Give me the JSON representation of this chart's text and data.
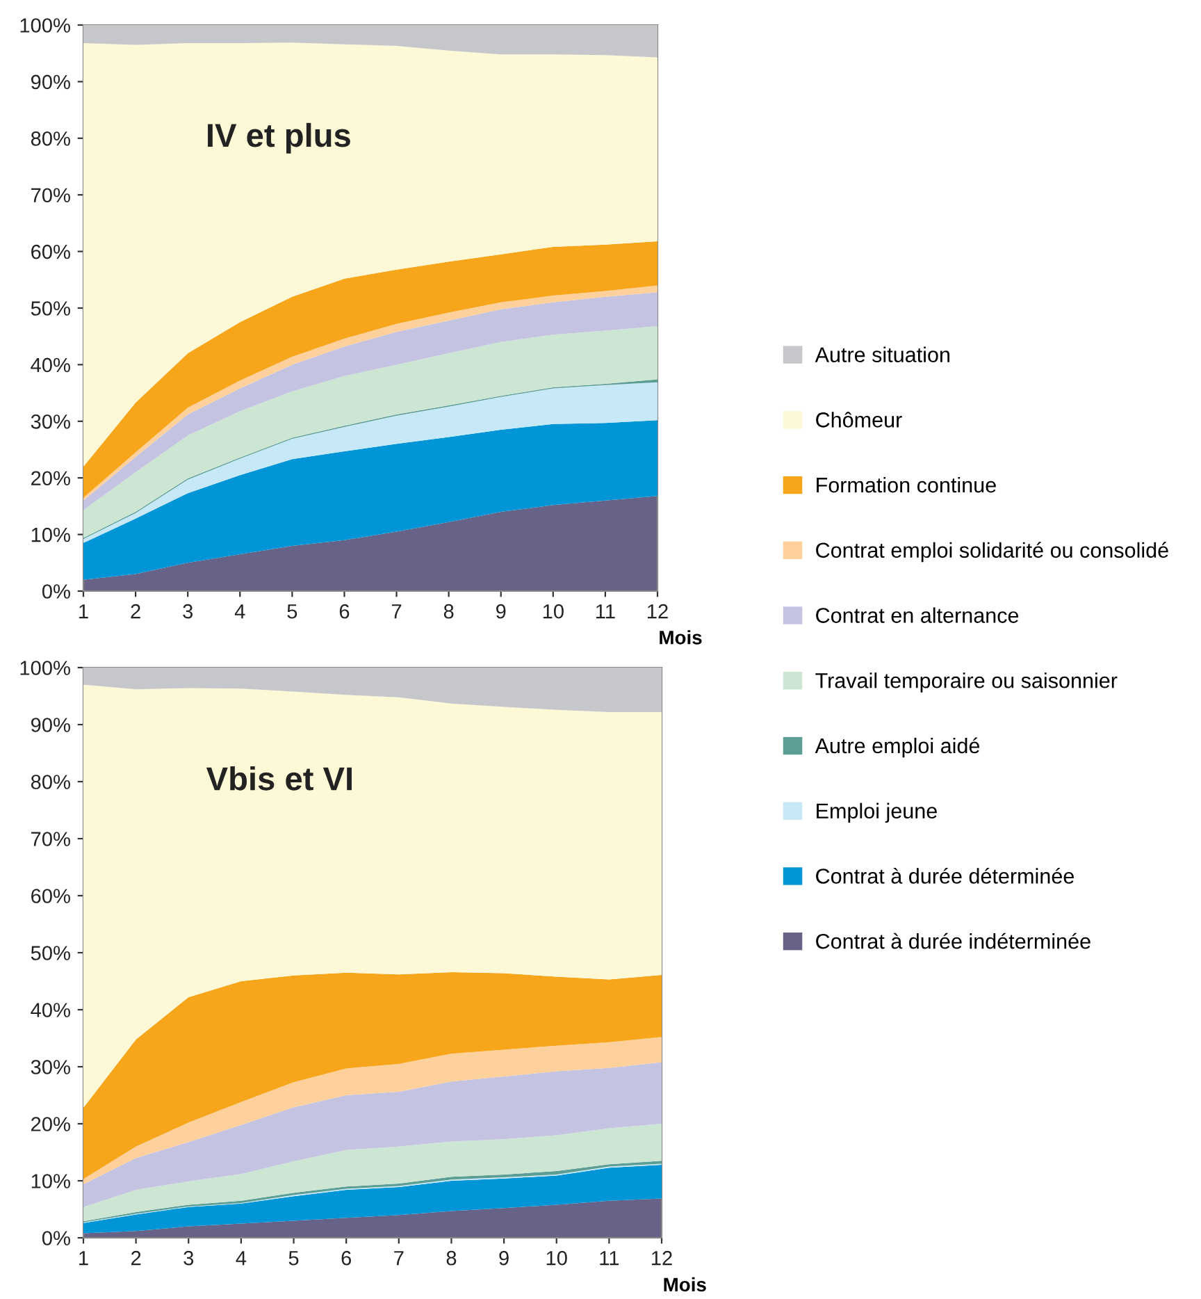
{
  "chart_data": [
    {
      "type": "area",
      "stacked": true,
      "title": "IV et plus",
      "xlabel": "Mois",
      "legend": "right",
      "x": [
        1,
        2,
        3,
        4,
        5,
        6,
        7,
        8,
        9,
        10,
        11,
        12
      ],
      "xlim": [
        1,
        12
      ],
      "xticks": [
        1,
        2,
        3,
        4,
        5,
        6,
        7,
        8,
        9,
        10,
        11,
        12
      ],
      "ylim": [
        0,
        100
      ],
      "yticks": [
        {
          "value": 0,
          "label": "0%"
        },
        {
          "value": 10,
          "label": "10%"
        },
        {
          "value": 20,
          "label": "20%"
        },
        {
          "value": 30,
          "label": "30%"
        },
        {
          "value": 40,
          "label": "40%"
        },
        {
          "value": 50,
          "label": "50%"
        },
        {
          "value": 60,
          "label": "60%"
        },
        {
          "value": 70,
          "label": "70%"
        },
        {
          "value": 80,
          "label": "80%"
        },
        {
          "value": 90,
          "label": "90%"
        },
        {
          "value": 100,
          "label": "100%"
        }
      ],
      "series": [
        {
          "name": "Contrat à durée indéterminée",
          "color": "#676287",
          "values": [
            2,
            3,
            5,
            6.5,
            8,
            9,
            10.5,
            12.2,
            14,
            15.2,
            16,
            16.8
          ]
        },
        {
          "name": "Contrat à durée déterminée",
          "color": "#0095d6",
          "values": [
            6.5,
            9.8,
            12.3,
            14,
            15.3,
            15.7,
            15.5,
            15,
            14.5,
            14.3,
            13.7,
            13.4
          ]
        },
        {
          "name": "Emploi jeune",
          "color": "#c6e8f7",
          "values": [
            0.7,
            1,
            2.4,
            2.9,
            3.6,
            4.3,
            5,
            5.4,
            5.8,
            6.3,
            6.7,
            6.7
          ]
        },
        {
          "name": "Autre emploi aidé",
          "color": "#5c9d95",
          "values": [
            0.2,
            0.2,
            0.2,
            0.2,
            0.2,
            0.2,
            0.2,
            0.2,
            0.2,
            0.2,
            0.2,
            0.5
          ]
        },
        {
          "name": "Travail temporaire ou saisonnier",
          "color": "#cde6d3",
          "values": [
            4.9,
            7,
            7.6,
            8.2,
            8.2,
            8.8,
            8.8,
            9.2,
            9.5,
            9.3,
            9.4,
            9.4
          ]
        },
        {
          "name": "Contrat en alternance",
          "color": "#c5c3e2",
          "values": [
            1.7,
            2.7,
            3.7,
            4,
            4.7,
            5.2,
            5.8,
            5.8,
            5.8,
            5.7,
            6,
            6
          ]
        },
        {
          "name": "Contrat emploi solidarité ou consolidé",
          "color": "#fdd09c",
          "values": [
            0.5,
            0.8,
            1.2,
            1.4,
            1.4,
            1.4,
            1.4,
            1.4,
            1.2,
            1.2,
            1,
            1.2
          ]
        },
        {
          "name": "Formation continue",
          "color": "#f7a61c",
          "values": [
            5.5,
            8.8,
            9.6,
            10.3,
            10.6,
            10.6,
            9.6,
            9,
            8.5,
            8.6,
            8.2,
            7.8
          ]
        },
        {
          "name": "Chômeur",
          "color": "#fdf8d6",
          "values": [
            74.8,
            63.2,
            54.8,
            49.3,
            44.9,
            41.4,
            39.5,
            37.3,
            35.3,
            34,
            33.5,
            32.5
          ]
        },
        {
          "name": "Autre situation",
          "color": "#c6c7cb",
          "values": [
            3.2,
            3.5,
            3.2,
            3.2,
            3.1,
            3.4,
            3.7,
            4.5,
            5.2,
            5.2,
            5.3,
            5.7
          ]
        }
      ]
    },
    {
      "type": "area",
      "stacked": true,
      "title": "Vbis et VI",
      "xlabel": "Mois",
      "x": [
        1,
        2,
        3,
        4,
        5,
        6,
        7,
        8,
        9,
        10,
        11,
        12
      ],
      "xlim": [
        1,
        12
      ],
      "xticks": [
        1,
        2,
        3,
        4,
        5,
        6,
        7,
        8,
        9,
        10,
        11,
        12
      ],
      "ylim": [
        0,
        100
      ],
      "yticks": [
        {
          "value": 0,
          "label": "0%"
        },
        {
          "value": 10,
          "label": "10%"
        },
        {
          "value": 20,
          "label": "20%"
        },
        {
          "value": 30,
          "label": "30%"
        },
        {
          "value": 40,
          "label": "40%"
        },
        {
          "value": 50,
          "label": "50%"
        },
        {
          "value": 60,
          "label": "60%"
        },
        {
          "value": 70,
          "label": "70%"
        },
        {
          "value": 80,
          "label": "80%"
        },
        {
          "value": 90,
          "label": "90%"
        },
        {
          "value": 100,
          "label": "100%"
        }
      ],
      "series": [
        {
          "color": "#676287",
          "values": [
            0.8,
            1.2,
            2,
            2.5,
            3,
            3.5,
            4,
            4.7,
            5.2,
            5.8,
            6.5,
            6.9
          ]
        },
        {
          "color": "#0095d6",
          "values": [
            1.8,
            2.9,
            3.4,
            3.5,
            4.3,
            4.9,
            4.9,
            5.3,
            5.2,
            5.1,
            5.8,
            5.9
          ]
        },
        {
          "color": "#c6e8f7",
          "values": [
            0.1,
            0.1,
            0.1,
            0.1,
            0.2,
            0.2,
            0.2,
            0.2,
            0.2,
            0.2,
            0.2,
            0.2
          ]
        },
        {
          "color": "#5c9d95",
          "values": [
            0.2,
            0.3,
            0.3,
            0.4,
            0.4,
            0.4,
            0.4,
            0.5,
            0.5,
            0.6,
            0.4,
            0.5
          ]
        },
        {
          "color": "#cde6d3",
          "values": [
            2.5,
            3.9,
            4.1,
            4.7,
            5.5,
            6.4,
            6.5,
            6.2,
            6.2,
            6.3,
            6.3,
            6.5
          ]
        },
        {
          "color": "#c5c3e2",
          "values": [
            4,
            5.6,
            6.9,
            8.6,
            9.5,
            9.6,
            9.6,
            10.5,
            11,
            11.2,
            10.6,
            10.8
          ]
        },
        {
          "color": "#fdd09c",
          "values": [
            0.9,
            2,
            3.4,
            4,
            4.4,
            4.7,
            4.9,
            4.9,
            4.7,
            4.5,
            4.5,
            4.4
          ]
        },
        {
          "color": "#f7a61c",
          "values": [
            12.5,
            18.8,
            22,
            21.2,
            18.7,
            16.8,
            15.7,
            14.3,
            13.4,
            12.1,
            11,
            10.9
          ]
        },
        {
          "color": "#fdf8d6",
          "values": [
            74.2,
            61.4,
            54.2,
            51.3,
            49.8,
            48.7,
            48.6,
            47.1,
            46.7,
            46.8,
            46.9,
            46.1
          ]
        },
        {
          "color": "#c6c7cb",
          "values": [
            3,
            3.8,
            3.6,
            3.7,
            4.2,
            4.8,
            5.2,
            6.3,
            6.9,
            7.4,
            7.8,
            7.8
          ]
        }
      ]
    }
  ]
}
